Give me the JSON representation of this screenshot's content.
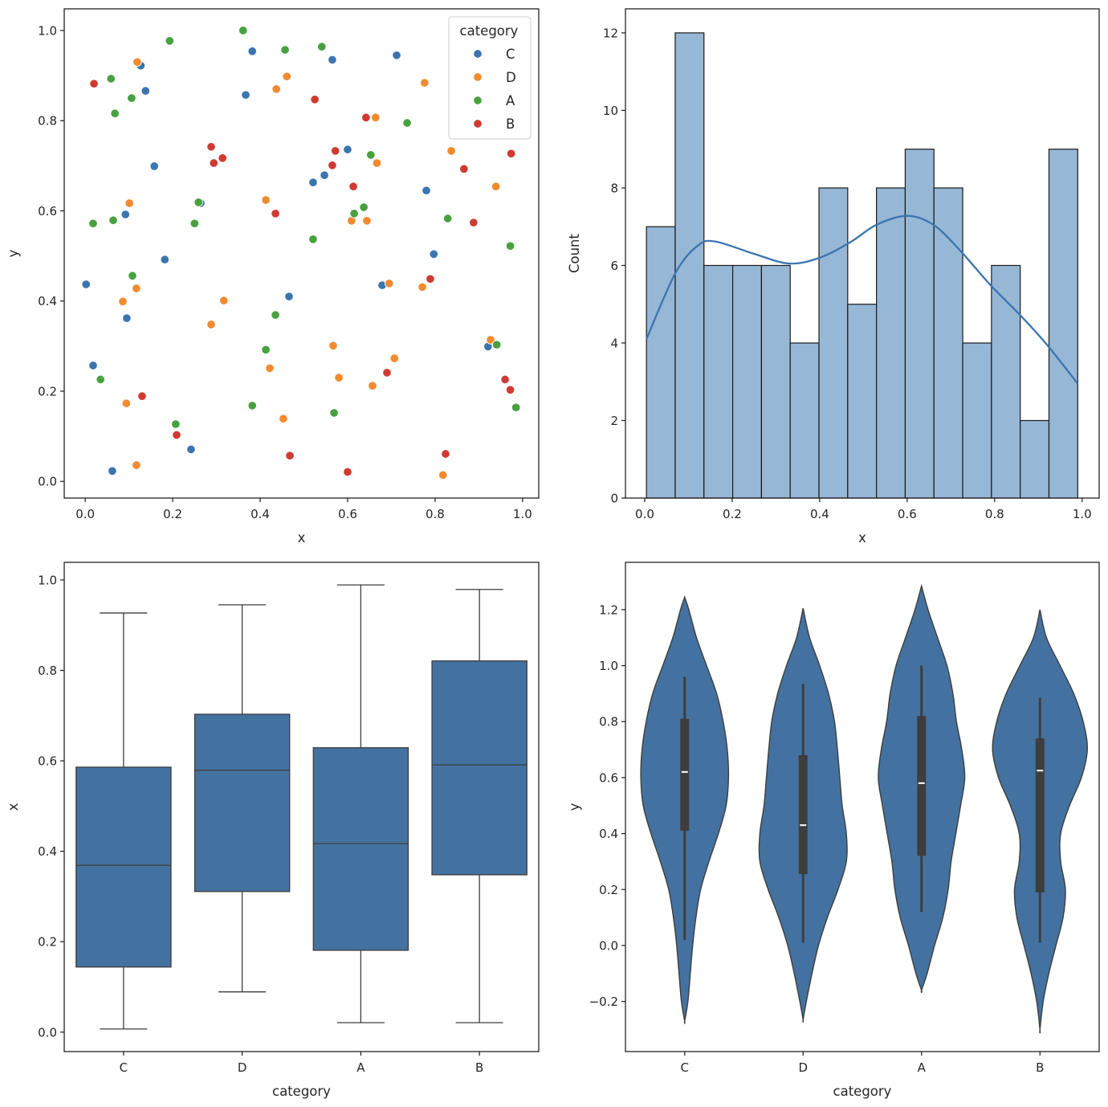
{
  "chart_data": [
    {
      "type": "scatter",
      "title": "",
      "xlabel": "x",
      "ylabel": "y",
      "xlim": [
        -0.048,
        1.037
      ],
      "ylim": [
        -0.037,
        1.048
      ],
      "xticks": [
        0.0,
        0.2,
        0.4,
        0.6,
        0.8,
        1.0
      ],
      "xtick_labels": [
        "0.0",
        "0.2",
        "0.4",
        "0.6",
        "0.8",
        "1.0"
      ],
      "yticks": [
        0.0,
        0.2,
        0.4,
        0.6,
        0.8,
        1.0
      ],
      "ytick_labels": [
        "0.0",
        "0.2",
        "0.4",
        "0.6",
        "0.8",
        "1.0"
      ],
      "grid": false,
      "legend": {
        "title": "category",
        "placement": "top-right",
        "entries": [
          "C",
          "D",
          "A",
          "B"
        ]
      },
      "series": [
        {
          "name": "C",
          "color": "#3a75b0",
          "x": [
            0.127,
            0.138,
            0.158,
            0.092,
            0.264,
            0.182,
            0.002,
            0.095,
            0.018,
            0.062,
            0.242,
            0.382,
            0.367,
            0.565,
            0.521,
            0.547,
            0.6,
            0.712,
            0.78,
            0.797,
            0.466,
            0.679,
            0.921
          ],
          "y": [
            0.922,
            0.866,
            0.699,
            0.592,
            0.617,
            0.492,
            0.437,
            0.362,
            0.257,
            0.023,
            0.071,
            0.954,
            0.857,
            0.935,
            0.663,
            0.679,
            0.736,
            0.945,
            0.645,
            0.504,
            0.41,
            0.435,
            0.299
          ]
        },
        {
          "name": "D",
          "color": "#f28a30",
          "x": [
            0.119,
            0.461,
            0.437,
            0.776,
            0.664,
            0.837,
            0.667,
            0.939,
            0.101,
            0.413,
            0.609,
            0.644,
            0.086,
            0.117,
            0.317,
            0.288,
            0.695,
            0.771,
            0.567,
            0.422,
            0.58,
            0.707,
            0.657,
            0.927,
            0.094,
            0.453,
            0.117,
            0.818
          ],
          "y": [
            0.93,
            0.898,
            0.87,
            0.884,
            0.807,
            0.733,
            0.706,
            0.654,
            0.617,
            0.624,
            0.578,
            0.578,
            0.399,
            0.428,
            0.401,
            0.348,
            0.439,
            0.431,
            0.301,
            0.251,
            0.23,
            0.273,
            0.212,
            0.314,
            0.173,
            0.139,
            0.036,
            0.014
          ]
        },
        {
          "name": "A",
          "color": "#48a13f",
          "x": [
            0.193,
            0.361,
            0.457,
            0.541,
            0.059,
            0.106,
            0.068,
            0.736,
            0.653,
            0.259,
            0.018,
            0.064,
            0.25,
            0.615,
            0.637,
            0.521,
            0.829,
            0.972,
            0.108,
            0.035,
            0.435,
            0.413,
            0.382,
            0.207,
            0.569,
            0.941,
            0.985
          ],
          "y": [
            0.977,
            1.0,
            0.957,
            0.964,
            0.893,
            0.85,
            0.816,
            0.795,
            0.724,
            0.619,
            0.572,
            0.579,
            0.572,
            0.594,
            0.608,
            0.537,
            0.583,
            0.522,
            0.456,
            0.226,
            0.369,
            0.292,
            0.168,
            0.127,
            0.152,
            0.303,
            0.164
          ]
        },
        {
          "name": "B",
          "color": "#cf3a31",
          "x": [
            0.02,
            0.525,
            0.642,
            0.288,
            0.294,
            0.314,
            0.572,
            0.565,
            0.613,
            0.435,
            0.866,
            0.974,
            0.888,
            0.789,
            0.13,
            0.209,
            0.468,
            0.6,
            0.824,
            0.69,
            0.96,
            0.972
          ],
          "y": [
            0.882,
            0.847,
            0.807,
            0.742,
            0.706,
            0.717,
            0.733,
            0.701,
            0.654,
            0.594,
            0.693,
            0.727,
            0.574,
            0.449,
            0.189,
            0.103,
            0.057,
            0.021,
            0.061,
            0.241,
            0.226,
            0.203
          ]
        }
      ]
    },
    {
      "type": "bar",
      "subtype": "histogram",
      "title": "",
      "xlabel": "x",
      "ylabel": "Count",
      "xlim": [
        -0.044,
        1.039
      ],
      "ylim": [
        0,
        12.62
      ],
      "xticks": [
        0.0,
        0.2,
        0.4,
        0.6,
        0.8,
        1.0
      ],
      "xtick_labels": [
        "0.0",
        "0.2",
        "0.4",
        "0.6",
        "0.8",
        "1.0"
      ],
      "yticks": [
        0,
        2,
        4,
        6,
        8,
        10,
        12
      ],
      "ytick_labels": [
        "0",
        "2",
        "4",
        "6",
        "8",
        "10",
        "12"
      ],
      "grid": false,
      "bin_start": 0.004,
      "bin_end": 0.99,
      "counts": [
        7,
        12,
        6,
        6,
        6,
        4,
        8,
        5,
        8,
        9,
        8,
        4,
        6,
        2,
        9
      ],
      "bar_color": "#97b7d6",
      "edge_color": "#1a1a1a",
      "kde": {
        "color": "#3a75b0",
        "x": [
          0.004,
          0.07,
          0.12,
          0.16,
          0.25,
          0.33,
          0.4,
          0.47,
          0.53,
          0.6,
          0.66,
          0.72,
          0.79,
          0.86,
          0.92,
          0.99
        ],
        "y": [
          4.1,
          5.8,
          6.5,
          6.62,
          6.3,
          6.05,
          6.2,
          6.6,
          7.05,
          7.28,
          7.05,
          6.4,
          5.5,
          4.7,
          3.95,
          2.95
        ]
      }
    },
    {
      "type": "box",
      "title": "",
      "xlabel": "category",
      "ylabel": "x",
      "categories": [
        "C",
        "D",
        "A",
        "B"
      ],
      "ylim": [
        -0.043,
        1.039
      ],
      "yticks": [
        0.0,
        0.2,
        0.4,
        0.6,
        0.8,
        1.0
      ],
      "ytick_labels": [
        "0.0",
        "0.2",
        "0.4",
        "0.6",
        "0.8",
        "1.0"
      ],
      "grid": false,
      "box_color": "#4472a0",
      "line_color": "#3d3d3d",
      "boxes": [
        {
          "category": "C",
          "whisker_low": 0.007,
          "q1": 0.144,
          "median": 0.369,
          "q3": 0.586,
          "whisker_high": 0.927
        },
        {
          "category": "D",
          "whisker_low": 0.089,
          "q1": 0.311,
          "median": 0.579,
          "q3": 0.703,
          "whisker_high": 0.945
        },
        {
          "category": "A",
          "whisker_low": 0.021,
          "q1": 0.181,
          "median": 0.417,
          "q3": 0.629,
          "whisker_high": 0.989
        },
        {
          "category": "B",
          "whisker_low": 0.021,
          "q1": 0.348,
          "median": 0.591,
          "q3": 0.821,
          "whisker_high": 0.979
        }
      ]
    },
    {
      "type": "violin",
      "title": "",
      "xlabel": "category",
      "ylabel": "y",
      "categories": [
        "C",
        "D",
        "A",
        "B"
      ],
      "ylim": [
        -0.379,
        1.369
      ],
      "yticks": [
        -0.2,
        0.0,
        0.2,
        0.4,
        0.6,
        0.8,
        1.0,
        1.2
      ],
      "ytick_labels": [
        "−0.2",
        "0.0",
        "0.2",
        "0.4",
        "0.6",
        "0.8",
        "1.0",
        "1.2"
      ],
      "grid": false,
      "violin_color": "#4472a0",
      "line_color": "#3d3d3d",
      "violins": [
        {
          "category": "C",
          "density_y": [
            1.245,
            1.2,
            1.1,
            1.0,
            0.9,
            0.8,
            0.7,
            0.6,
            0.5,
            0.4,
            0.3,
            0.2,
            0.1,
            0.0,
            -0.1,
            -0.2,
            -0.27
          ],
          "density_w": [
            0,
            0.07,
            0.2,
            0.37,
            0.54,
            0.65,
            0.72,
            0.74,
            0.7,
            0.57,
            0.41,
            0.27,
            0.19,
            0.135,
            0.095,
            0.055,
            0
          ],
          "whisker_low": 0.02,
          "q1": 0.41,
          "median": 0.62,
          "q3": 0.81,
          "whisker_high": 0.96
        },
        {
          "category": "D",
          "density_y": [
            1.205,
            1.1,
            1.0,
            0.9,
            0.8,
            0.7,
            0.6,
            0.5,
            0.4,
            0.3,
            0.2,
            0.1,
            0.0,
            -0.1,
            -0.2,
            -0.265
          ],
          "density_w": [
            0,
            0.11,
            0.28,
            0.43,
            0.53,
            0.58,
            0.62,
            0.66,
            0.73,
            0.73,
            0.59,
            0.41,
            0.26,
            0.15,
            0.055,
            0
          ],
          "whisker_low": 0.01,
          "q1": 0.255,
          "median": 0.43,
          "q3": 0.68,
          "whisker_high": 0.935
        },
        {
          "category": "A",
          "density_y": [
            1.285,
            1.2,
            1.1,
            1.0,
            0.9,
            0.8,
            0.7,
            0.6,
            0.5,
            0.4,
            0.3,
            0.2,
            0.1,
            0.0,
            -0.1,
            -0.16
          ],
          "density_w": [
            0,
            0.11,
            0.27,
            0.43,
            0.53,
            0.59,
            0.68,
            0.73,
            0.66,
            0.58,
            0.5,
            0.45,
            0.36,
            0.22,
            0.095,
            0
          ],
          "whisker_low": 0.12,
          "q1": 0.32,
          "median": 0.58,
          "q3": 0.82,
          "whisker_high": 1.0
        },
        {
          "category": "B",
          "density_y": [
            1.2,
            1.1,
            1.0,
            0.9,
            0.8,
            0.7,
            0.6,
            0.5,
            0.4,
            0.3,
            0.2,
            0.1,
            0.0,
            -0.1,
            -0.2,
            -0.3
          ],
          "density_w": [
            0,
            0.11,
            0.34,
            0.57,
            0.73,
            0.8,
            0.7,
            0.5,
            0.35,
            0.35,
            0.43,
            0.39,
            0.27,
            0.15,
            0.055,
            0
          ],
          "whisker_low": 0.01,
          "q1": 0.19,
          "median": 0.625,
          "q3": 0.74,
          "whisker_high": 0.885
        }
      ]
    }
  ]
}
